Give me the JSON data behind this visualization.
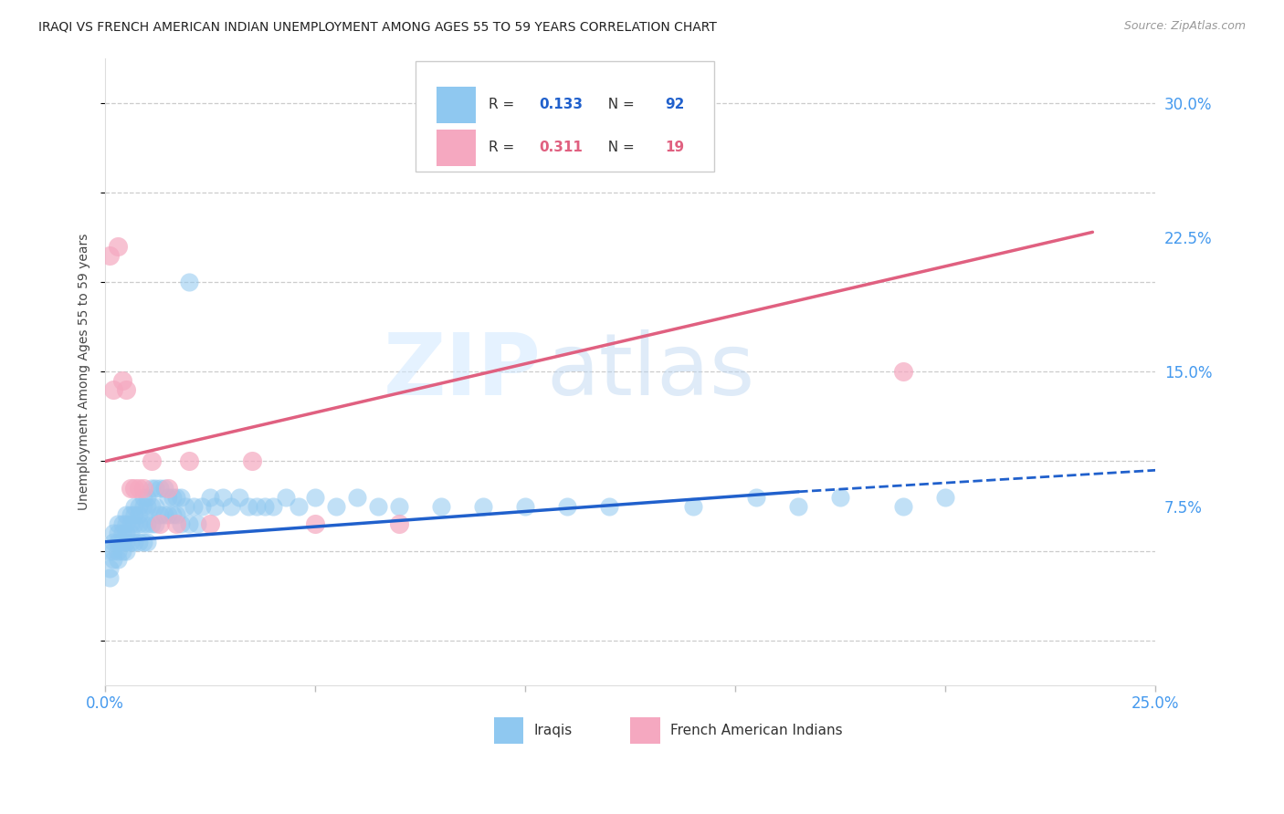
{
  "title": "IRAQI VS FRENCH AMERICAN INDIAN UNEMPLOYMENT AMONG AGES 55 TO 59 YEARS CORRELATION CHART",
  "source": "Source: ZipAtlas.com",
  "ylabel": "Unemployment Among Ages 55 to 59 years",
  "xlim": [
    0.0,
    0.25
  ],
  "ylim": [
    -0.025,
    0.325
  ],
  "xtick_positions": [
    0.0,
    0.05,
    0.1,
    0.15,
    0.2,
    0.25
  ],
  "xticklabels": [
    "0.0%",
    "",
    "",
    "",
    "",
    "25.0%"
  ],
  "ytick_positions": [
    0.0,
    0.075,
    0.15,
    0.225,
    0.3
  ],
  "yticklabels": [
    "",
    "7.5%",
    "15.0%",
    "22.5%",
    "30.0%"
  ],
  "R_iraqi": 0.133,
  "N_iraqi": 92,
  "R_french": 0.311,
  "N_french": 19,
  "iraqi_color": "#8FC8F0",
  "french_color": "#F5A8C0",
  "iraqi_line_color": "#2060CC",
  "french_line_color": "#E06080",
  "watermark1": "ZIP",
  "watermark2": "atlas",
  "background_color": "#FFFFFF",
  "grid_color": "#CCCCCC",
  "tick_label_color": "#4499EE",
  "iraqi_x": [
    0.001,
    0.001,
    0.001,
    0.002,
    0.002,
    0.002,
    0.002,
    0.003,
    0.003,
    0.003,
    0.003,
    0.003,
    0.004,
    0.004,
    0.004,
    0.004,
    0.005,
    0.005,
    0.005,
    0.005,
    0.005,
    0.006,
    0.006,
    0.006,
    0.006,
    0.007,
    0.007,
    0.007,
    0.007,
    0.008,
    0.008,
    0.008,
    0.008,
    0.009,
    0.009,
    0.009,
    0.009,
    0.01,
    0.01,
    0.01,
    0.01,
    0.011,
    0.011,
    0.011,
    0.012,
    0.012,
    0.012,
    0.013,
    0.013,
    0.014,
    0.014,
    0.015,
    0.015,
    0.016,
    0.016,
    0.017,
    0.017,
    0.018,
    0.018,
    0.019,
    0.02,
    0.02,
    0.021,
    0.022,
    0.023,
    0.025,
    0.026,
    0.028,
    0.03,
    0.032,
    0.034,
    0.036,
    0.038,
    0.04,
    0.043,
    0.046,
    0.05,
    0.055,
    0.06,
    0.065,
    0.07,
    0.08,
    0.09,
    0.1,
    0.11,
    0.12,
    0.14,
    0.155,
    0.165,
    0.175,
    0.19,
    0.2
  ],
  "iraqi_y": [
    0.05,
    0.04,
    0.035,
    0.06,
    0.055,
    0.05,
    0.045,
    0.065,
    0.06,
    0.055,
    0.05,
    0.045,
    0.065,
    0.06,
    0.055,
    0.05,
    0.07,
    0.065,
    0.06,
    0.055,
    0.05,
    0.07,
    0.065,
    0.06,
    0.055,
    0.075,
    0.07,
    0.065,
    0.055,
    0.075,
    0.07,
    0.065,
    0.055,
    0.08,
    0.075,
    0.065,
    0.055,
    0.08,
    0.075,
    0.065,
    0.055,
    0.085,
    0.075,
    0.065,
    0.085,
    0.075,
    0.065,
    0.085,
    0.07,
    0.085,
    0.07,
    0.08,
    0.07,
    0.08,
    0.07,
    0.08,
    0.07,
    0.08,
    0.065,
    0.075,
    0.2,
    0.065,
    0.075,
    0.065,
    0.075,
    0.08,
    0.075,
    0.08,
    0.075,
    0.08,
    0.075,
    0.075,
    0.075,
    0.075,
    0.08,
    0.075,
    0.08,
    0.075,
    0.08,
    0.075,
    0.075,
    0.075,
    0.075,
    0.075,
    0.075,
    0.075,
    0.075,
    0.08,
    0.075,
    0.08,
    0.075,
    0.08
  ],
  "french_x": [
    0.001,
    0.002,
    0.003,
    0.004,
    0.005,
    0.006,
    0.007,
    0.008,
    0.009,
    0.011,
    0.013,
    0.015,
    0.017,
    0.02,
    0.025,
    0.035,
    0.05,
    0.07,
    0.19
  ],
  "french_y": [
    0.215,
    0.14,
    0.22,
    0.145,
    0.14,
    0.085,
    0.085,
    0.085,
    0.085,
    0.1,
    0.065,
    0.085,
    0.065,
    0.1,
    0.065,
    0.1,
    0.065,
    0.065,
    0.15
  ],
  "iraqi_line_x0": 0.0,
  "iraqi_line_x_solid_end": 0.165,
  "iraqi_line_x_end": 0.25,
  "iraqi_line_y0": 0.055,
  "iraqi_line_y_solid_end": 0.083,
  "iraqi_line_y_end": 0.095,
  "french_line_x0": 0.0,
  "french_line_x_end": 0.235,
  "french_line_y0": 0.1,
  "french_line_y_end": 0.228
}
